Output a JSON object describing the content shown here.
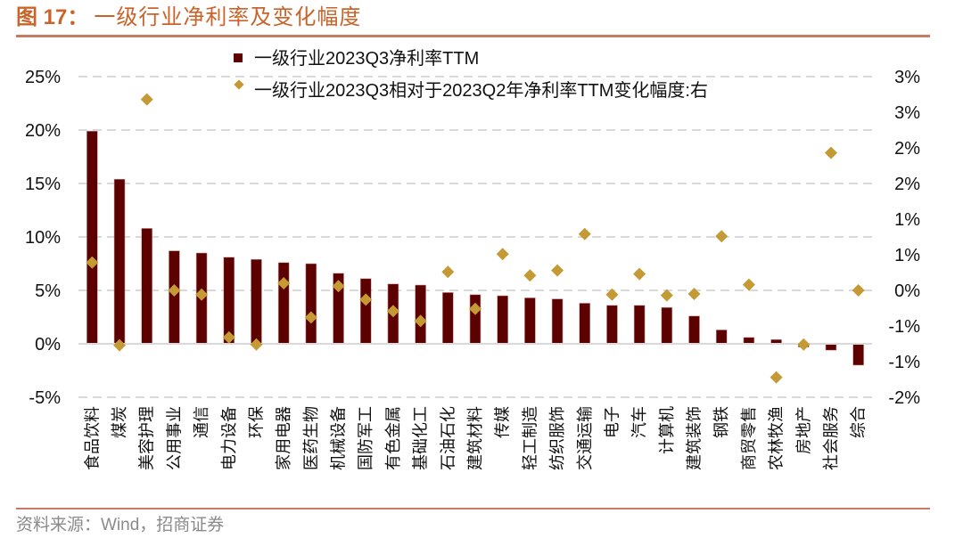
{
  "header": {
    "figure_label": "图 17：",
    "title": "一级行业净利率及变化幅度"
  },
  "footer": {
    "source": "资料来源：Wind，招商证券"
  },
  "colors": {
    "bar": "#5C0000",
    "diamond": "#C49A35",
    "title": "#C8642A",
    "rule": "#C97A63",
    "grid": "#D9D9D9"
  },
  "chart_data": {
    "type": "bar",
    "title": "一级行业净利率及变化幅度",
    "xlabel": "",
    "ylabel": "",
    "grid": true,
    "legend_position": "top-center",
    "categories": [
      "食品饮料",
      "煤炭",
      "美容护理",
      "公用事业",
      "通信",
      "电力设备",
      "环保",
      "家用电器",
      "医药生物",
      "机械设备",
      "国防军工",
      "有色金属",
      "基础化工",
      "石油石化",
      "建筑材料",
      "传媒",
      "轻工制造",
      "纺织服饰",
      "交通运输",
      "电子",
      "汽车",
      "计算机",
      "建筑装饰",
      "钢铁",
      "商贸零售",
      "农林牧渔",
      "房地产",
      "社会服务",
      "综合"
    ],
    "left_axis": {
      "ylim": [
        -5,
        25
      ],
      "ticks": [
        25,
        20,
        15,
        10,
        5,
        0,
        -5
      ],
      "tick_labels": [
        "25%",
        "20%",
        "15%",
        "10%",
        "5%",
        "0%",
        "-5%"
      ]
    },
    "right_axis": {
      "ylim": [
        -1.5,
        3.0
      ],
      "ticks": [
        3.0,
        2.5,
        2.0,
        1.5,
        1.0,
        0.5,
        0.0,
        -0.5,
        -1.0,
        -1.5
      ],
      "tick_labels": [
        "3%",
        "3%",
        "2%",
        "2%",
        "1%",
        "1%",
        "0%",
        "-1%",
        "-1%",
        "-2%"
      ]
    },
    "series": [
      {
        "name": "一级行业2023Q3净利率TTM",
        "type": "bar",
        "axis": "left",
        "unit": "%",
        "values": [
          19.9,
          15.4,
          10.8,
          8.7,
          8.5,
          8.1,
          7.9,
          7.6,
          7.5,
          6.6,
          6.1,
          5.6,
          5.5,
          4.8,
          4.6,
          4.5,
          4.3,
          4.2,
          3.8,
          3.6,
          3.6,
          3.4,
          2.6,
          1.3,
          0.6,
          0.4,
          -0.3,
          -0.6,
          -2.0
        ]
      },
      {
        "name": "一级行业2023Q3相对于2023Q2年净利率TTM变化幅度:右",
        "type": "scatter",
        "marker": "diamond",
        "axis": "right",
        "unit": "%",
        "values": [
          0.39,
          -0.77,
          2.68,
          0.0,
          -0.06,
          -0.66,
          -0.76,
          0.1,
          -0.38,
          0.06,
          -0.13,
          -0.29,
          -0.43,
          0.26,
          -0.26,
          0.51,
          0.21,
          0.28,
          0.79,
          -0.06,
          0.23,
          -0.07,
          -0.05,
          0.76,
          0.08,
          -1.22,
          -0.76,
          1.93,
          0.0
        ]
      }
    ]
  }
}
